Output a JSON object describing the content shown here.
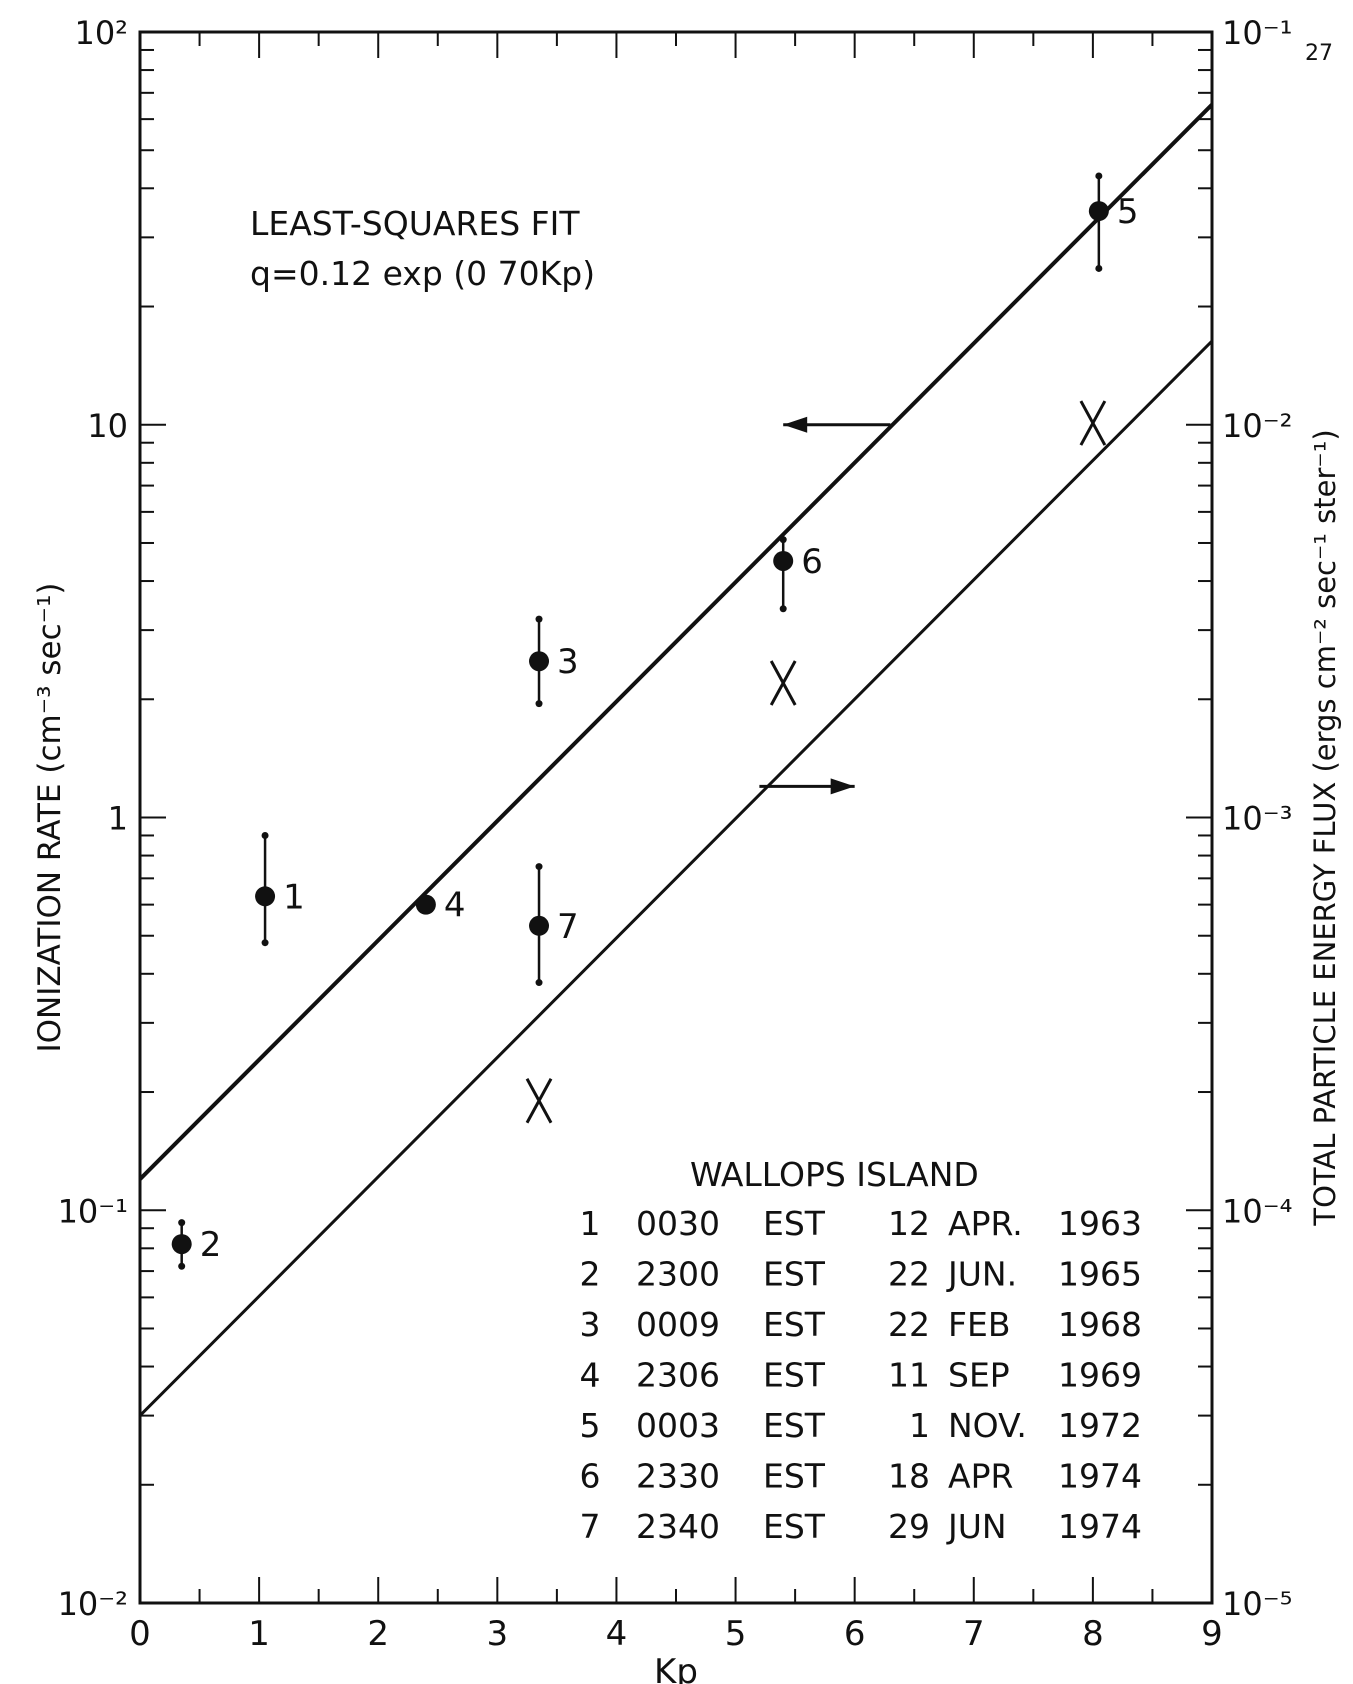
{
  "chart_data": {
    "type": "scatter",
    "x": {
      "label": "Kp",
      "lim": [
        0,
        9
      ],
      "ticks": [
        0,
        1,
        2,
        3,
        4,
        5,
        6,
        7,
        8,
        9
      ],
      "tick_labels": [
        "0",
        "1",
        "2",
        "3",
        "4",
        "5",
        "6",
        "7",
        "8",
        "9"
      ]
    },
    "y_left": {
      "label": "IONIZATION RATE (cm⁻³ sec⁻¹)",
      "scale": "log",
      "lim": [
        0.01,
        100
      ],
      "ticks": [
        0.01,
        0.1,
        1,
        10,
        100
      ],
      "tick_labels": [
        "10⁻²",
        "10⁻¹",
        "1",
        "10",
        "10²"
      ]
    },
    "y_right": {
      "label": "TOTAL PARTICLE ENERGY FLUX (ergs cm⁻² sec⁻¹ ster⁻¹)",
      "scale": "log",
      "lim": [
        1e-05,
        0.1
      ],
      "ticks": [
        1e-05,
        0.0001,
        0.001,
        0.01,
        0.1
      ],
      "tick_labels": [
        "10⁻⁵",
        "10⁻⁴",
        "10⁻³",
        "10⁻²",
        "10⁻¹"
      ],
      "corner_label": "27"
    },
    "annotation": {
      "line1": "LEAST-SQUARES FIT",
      "line2": "q=0.12 exp (0 70Kp)"
    },
    "series": [
      {
        "axis": "left",
        "marker": "dot-errorbar",
        "points": [
          {
            "label": "1",
            "x": 1.05,
            "y": 0.63,
            "ylo": 0.48,
            "yhi": 0.9
          },
          {
            "label": "2",
            "x": 0.35,
            "y": 0.082,
            "ylo": 0.072,
            "yhi": 0.093
          },
          {
            "label": "3",
            "x": 3.35,
            "y": 2.5,
            "ylo": 1.95,
            "yhi": 3.2
          },
          {
            "label": "4",
            "x": 2.4,
            "y": 0.6,
            "ylo": null,
            "yhi": null
          },
          {
            "label": "5",
            "x": 8.05,
            "y": 35,
            "ylo": 25,
            "yhi": 43
          },
          {
            "label": "6",
            "x": 5.4,
            "y": 4.5,
            "ylo": 3.4,
            "yhi": 5.1
          },
          {
            "label": "7",
            "x": 3.35,
            "y": 0.53,
            "ylo": 0.38,
            "yhi": 0.75
          }
        ]
      },
      {
        "axis": "right",
        "marker": "X",
        "points": [
          {
            "x": 3.35,
            "y": 0.00019
          },
          {
            "x": 5.4,
            "y": 0.0022
          },
          {
            "x": 8.0,
            "y": 0.0101
          }
        ]
      }
    ],
    "fit_lines": [
      {
        "axis": "left",
        "a": 0.12,
        "b": 0.7,
        "x_range": [
          0,
          9
        ]
      },
      {
        "axis": "right",
        "a": 3e-05,
        "b": 0.7,
        "x_range": [
          0,
          9
        ]
      }
    ],
    "arrows": [
      {
        "direction": "left",
        "x_from": 6.3,
        "x_to": 5.4,
        "y_left": 10
      },
      {
        "direction": "right",
        "x_from": 5.2,
        "x_to": 6.0,
        "y_left": 1.2
      }
    ],
    "legend": {
      "title": "WALLOPS ISLAND",
      "placement": "bottom-right",
      "rows": [
        [
          "1",
          "0030",
          "EST",
          "12",
          "APR.",
          "1963"
        ],
        [
          "2",
          "2300",
          "EST",
          "22",
          "JUN.",
          "1965"
        ],
        [
          "3",
          "0009",
          "EST",
          "22",
          "FEB",
          "1968"
        ],
        [
          "4",
          "2306",
          "EST",
          "11",
          "SEP",
          "1969"
        ],
        [
          "5",
          "0003",
          "EST",
          "1",
          "NOV.",
          "1972"
        ],
        [
          "6",
          "2330",
          "EST",
          "18",
          "APR",
          "1974"
        ],
        [
          "7",
          "2340",
          "EST",
          "29",
          "JUN",
          "1974"
        ]
      ]
    }
  }
}
